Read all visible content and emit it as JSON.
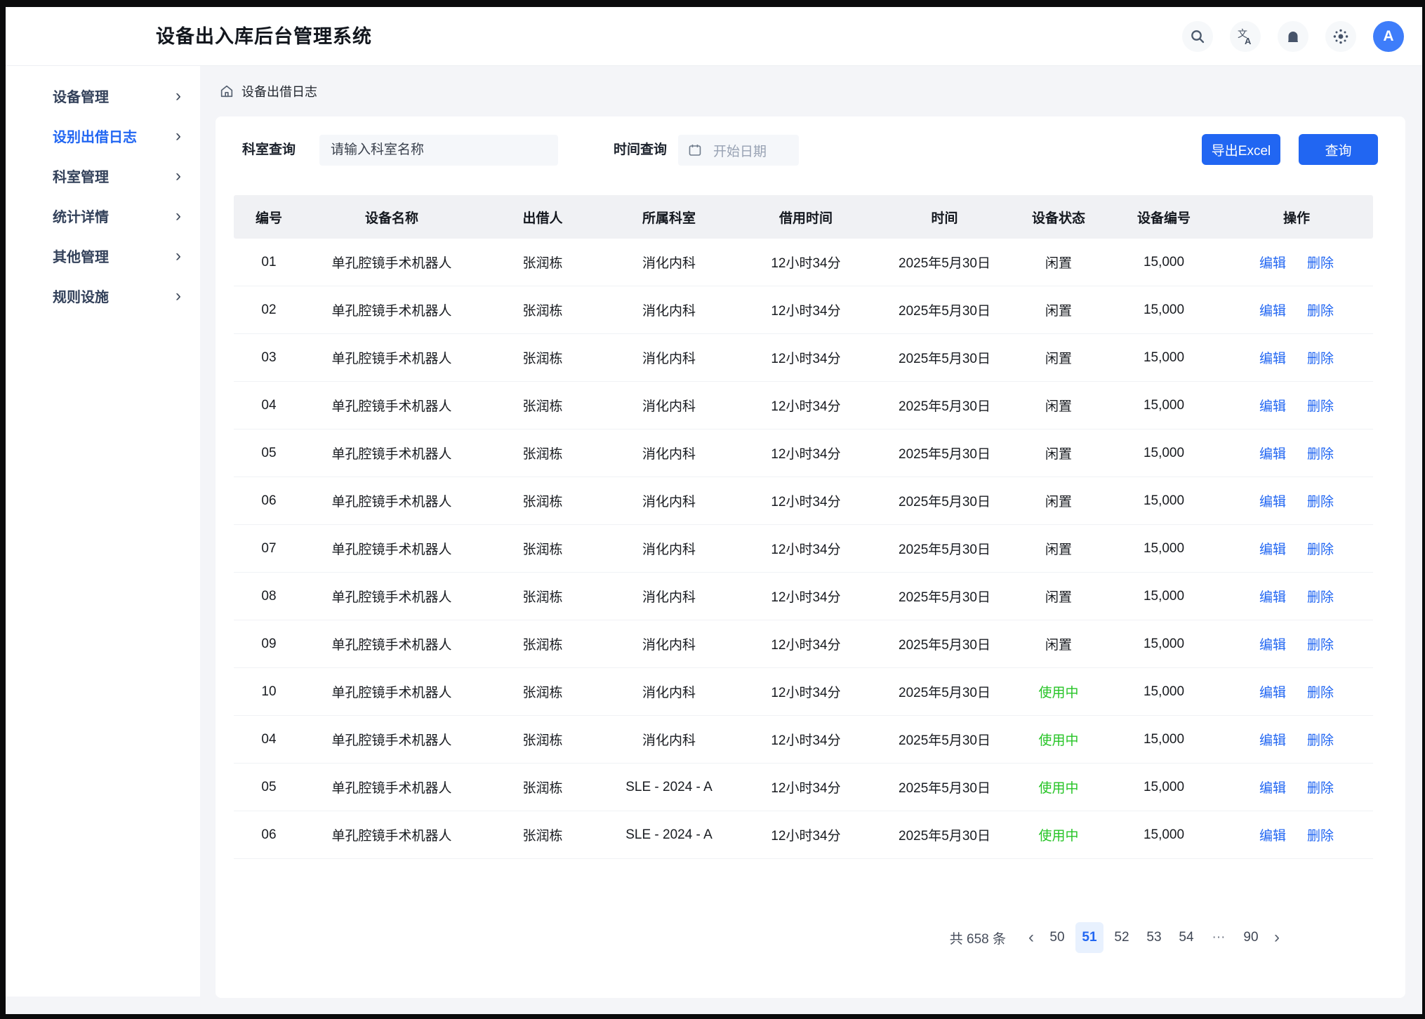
{
  "app": {
    "title": "设备出入库后台管理系统"
  },
  "header": {
    "icons": [
      {
        "name": "search-icon"
      },
      {
        "name": "translate-icon"
      },
      {
        "name": "notification-icon"
      },
      {
        "name": "theme-icon"
      }
    ],
    "avatar_letter": "A"
  },
  "sidebar": {
    "chevron": "›",
    "items": [
      {
        "label": "设备管理",
        "active": false
      },
      {
        "label": "设别出借日志",
        "active": true
      },
      {
        "label": "科室管理",
        "active": false
      },
      {
        "label": "统计详情",
        "active": false
      },
      {
        "label": "其他管理",
        "active": false
      },
      {
        "label": "规则设施",
        "active": false
      }
    ]
  },
  "breadcrumb": {
    "label": "设备出借日志"
  },
  "filters": {
    "dept_label": "科室查询",
    "dept_placeholder": "请输入科室名称",
    "time_label": "时间查询",
    "date_placeholder": "开始日期",
    "export_button": "导出Excel",
    "query_button": "查询"
  },
  "table": {
    "columns": [
      "编号",
      "设备名称",
      "出借人",
      "所属科室",
      "借用时间",
      "时间",
      "设备状态",
      "设备编号",
      "操作"
    ],
    "edit_label": "编辑",
    "delete_label": "删除",
    "rows": [
      {
        "no": "01",
        "name": "单孔腔镜手术机器人",
        "borrower": "张润栋",
        "dept": "消化内科",
        "duration": "12小时34分",
        "date": "2025年5月30日",
        "status": "闲置",
        "status_state": "idle",
        "code": "15,000"
      },
      {
        "no": "02",
        "name": "单孔腔镜手术机器人",
        "borrower": "张润栋",
        "dept": "消化内科",
        "duration": "12小时34分",
        "date": "2025年5月30日",
        "status": "闲置",
        "status_state": "idle",
        "code": "15,000"
      },
      {
        "no": "03",
        "name": "单孔腔镜手术机器人",
        "borrower": "张润栋",
        "dept": "消化内科",
        "duration": "12小时34分",
        "date": "2025年5月30日",
        "status": "闲置",
        "status_state": "idle",
        "code": "15,000"
      },
      {
        "no": "04",
        "name": "单孔腔镜手术机器人",
        "borrower": "张润栋",
        "dept": "消化内科",
        "duration": "12小时34分",
        "date": "2025年5月30日",
        "status": "闲置",
        "status_state": "idle",
        "code": "15,000"
      },
      {
        "no": "05",
        "name": "单孔腔镜手术机器人",
        "borrower": "张润栋",
        "dept": "消化内科",
        "duration": "12小时34分",
        "date": "2025年5月30日",
        "status": "闲置",
        "status_state": "idle",
        "code": "15,000"
      },
      {
        "no": "06",
        "name": "单孔腔镜手术机器人",
        "borrower": "张润栋",
        "dept": "消化内科",
        "duration": "12小时34分",
        "date": "2025年5月30日",
        "status": "闲置",
        "status_state": "idle",
        "code": "15,000"
      },
      {
        "no": "07",
        "name": "单孔腔镜手术机器人",
        "borrower": "张润栋",
        "dept": "消化内科",
        "duration": "12小时34分",
        "date": "2025年5月30日",
        "status": "闲置",
        "status_state": "idle",
        "code": "15,000"
      },
      {
        "no": "08",
        "name": "单孔腔镜手术机器人",
        "borrower": "张润栋",
        "dept": "消化内科",
        "duration": "12小时34分",
        "date": "2025年5月30日",
        "status": "闲置",
        "status_state": "idle",
        "code": "15,000"
      },
      {
        "no": "09",
        "name": "单孔腔镜手术机器人",
        "borrower": "张润栋",
        "dept": "消化内科",
        "duration": "12小时34分",
        "date": "2025年5月30日",
        "status": "闲置",
        "status_state": "idle",
        "code": "15,000"
      },
      {
        "no": "10",
        "name": "单孔腔镜手术机器人",
        "borrower": "张润栋",
        "dept": "消化内科",
        "duration": "12小时34分",
        "date": "2025年5月30日",
        "status": "使用中",
        "status_state": "in-use",
        "code": "15,000"
      },
      {
        "no": "04",
        "name": "单孔腔镜手术机器人",
        "borrower": "张润栋",
        "dept": "消化内科",
        "duration": "12小时34分",
        "date": "2025年5月30日",
        "status": "使用中",
        "status_state": "in-use",
        "code": "15,000"
      },
      {
        "no": "05",
        "name": "单孔腔镜手术机器人",
        "borrower": "张润栋",
        "dept": "SLE - 2024 - A",
        "duration": "12小时34分",
        "date": "2025年5月30日",
        "status": "使用中",
        "status_state": "in-use",
        "code": "15,000"
      },
      {
        "no": "06",
        "name": "单孔腔镜手术机器人",
        "borrower": "张润栋",
        "dept": "SLE - 2024 - A",
        "duration": "12小时34分",
        "date": "2025年5月30日",
        "status": "使用中",
        "status_state": "in-use",
        "code": "15,000"
      }
    ]
  },
  "pagination": {
    "total": "共 658 条",
    "prev": "‹",
    "next": "›",
    "pages": [
      "50",
      "51",
      "52",
      "53",
      "54",
      "···",
      "90"
    ],
    "active_index": 1
  },
  "colors": {
    "primary": "#2166f2",
    "green": "#26c426",
    "avatar_blue": "#3e7dfa",
    "page_bg": "#f4f5f8"
  }
}
